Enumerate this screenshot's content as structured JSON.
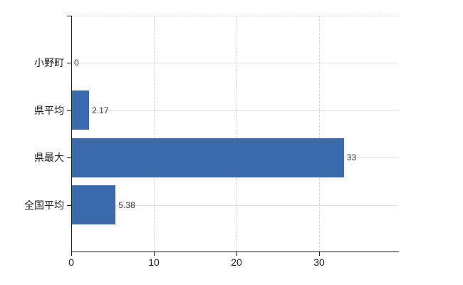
{
  "chart_data": {
    "type": "bar",
    "orientation": "horizontal",
    "title": "",
    "categories": [
      "小野町",
      "県平均",
      "県最大",
      "全国平均"
    ],
    "values": [
      0,
      2.17,
      33,
      5.38
    ],
    "value_labels": [
      "0",
      "2.17",
      "33",
      "5.38"
    ],
    "x_ticks": [
      0,
      10,
      20,
      30
    ],
    "x_tick_labels": [
      "0",
      "10",
      "20",
      "30"
    ],
    "xlim": [
      0,
      39.7
    ],
    "xlabel": "",
    "ylabel": "",
    "grid": {
      "horizontal_solid": true,
      "vertical_dashed": true,
      "top_border_dashed": true
    },
    "legend": null,
    "colors": {
      "bar": "#3b6aab",
      "h_gridline": "#dde3dd",
      "v_gridline": "#d3d3d3",
      "axis": "#1a1a1a",
      "category_text": "#222222",
      "value_text": "#3a3a3a",
      "background": "#ffffff"
    }
  }
}
